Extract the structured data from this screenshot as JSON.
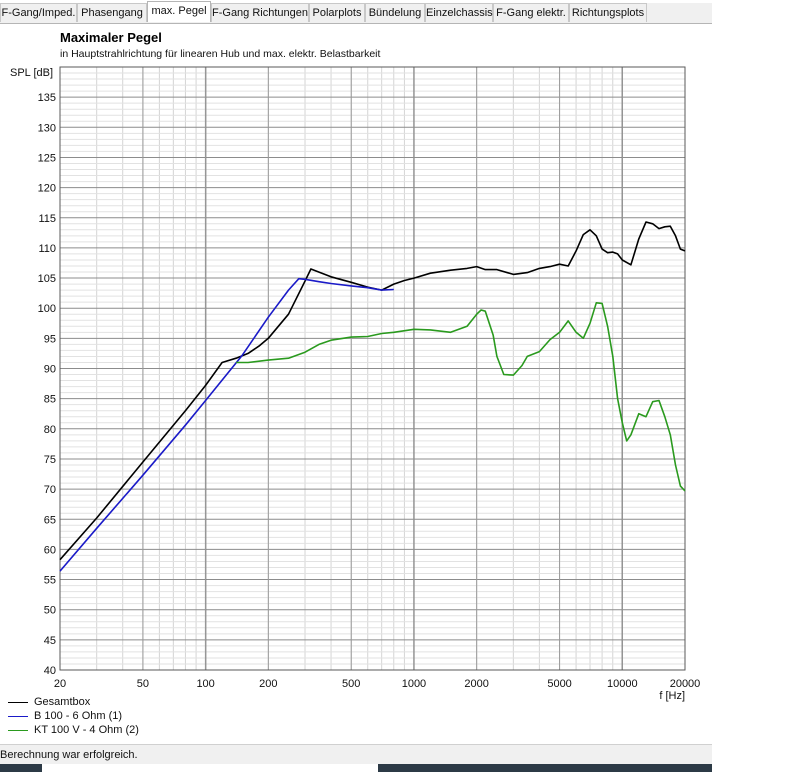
{
  "tabs": [
    {
      "label": "F-Gang/Imped.",
      "active": false
    },
    {
      "label": "Phasengang",
      "active": false
    },
    {
      "label": "max. Pegel",
      "active": true
    },
    {
      "label": "F-Gang Richtungen",
      "active": false
    },
    {
      "label": "Polarplots",
      "active": false
    },
    {
      "label": "Bündelung",
      "active": false
    },
    {
      "label": "Einzelchassis",
      "active": false
    },
    {
      "label": "F-Gang elektr.",
      "active": false
    },
    {
      "label": "Richtungsplots",
      "active": false
    }
  ],
  "status": {
    "text": "Berechnung war erfolgreich."
  },
  "chart_data": {
    "type": "line",
    "title": "Maximaler Pegel",
    "subtitle": "in Hauptstrahlrichtung für linearen Hub und max. elektr. Belastbarkeit",
    "ylabel": "SPL [dB]",
    "xlabel": "f [Hz]",
    "x_scale": "log",
    "xlim": [
      20,
      20000
    ],
    "ylim": [
      40,
      140
    ],
    "x_ticks": [
      20,
      50,
      100,
      200,
      500,
      1000,
      2000,
      5000,
      10000,
      20000
    ],
    "x_tick_labels": [
      "20",
      "50",
      "100",
      "200",
      "500",
      "1000",
      "2000",
      "5000",
      "10000",
      "20000"
    ],
    "y_ticks": [
      40,
      45,
      50,
      55,
      60,
      65,
      70,
      75,
      80,
      85,
      90,
      95,
      100,
      105,
      110,
      115,
      120,
      125,
      130,
      135
    ],
    "grid": true,
    "legend_position": "bottom-left",
    "series": [
      {
        "name": "Gesamtbox",
        "color": "#000000",
        "x": [
          20,
          30,
          50,
          80,
          100,
          120,
          140,
          160,
          180,
          200,
          250,
          300,
          320,
          400,
          500,
          600,
          700,
          800,
          900,
          1000,
          1200,
          1500,
          1800,
          2000,
          2200,
          2500,
          3000,
          3500,
          4000,
          4500,
          5000,
          5500,
          6000,
          6500,
          7000,
          7500,
          8000,
          8500,
          9000,
          9500,
          10000,
          11000,
          12000,
          13000,
          14000,
          15000,
          16000,
          17000,
          18000,
          19000,
          20000
        ],
        "y": [
          58.3,
          65.2,
          74.5,
          83.0,
          87.2,
          91.0,
          91.7,
          92.5,
          93.7,
          95.0,
          99.0,
          104.5,
          106.5,
          105.2,
          104.3,
          103.5,
          103.0,
          104.0,
          104.6,
          105.0,
          105.8,
          106.3,
          106.6,
          106.9,
          106.4,
          106.4,
          105.6,
          105.9,
          106.6,
          106.9,
          107.3,
          107.0,
          109.5,
          112.2,
          113.0,
          112.0,
          109.8,
          109.2,
          109.3,
          109.0,
          108.0,
          107.2,
          111.5,
          114.3,
          114.0,
          113.2,
          113.5,
          113.6,
          112.0,
          109.8,
          109.5
        ]
      },
      {
        "name": "B 100 - 6 Ohm (1)",
        "color": "#1a1ac8",
        "x": [
          20,
          30,
          50,
          80,
          100,
          150,
          200,
          250,
          280,
          300,
          350,
          400,
          500,
          600,
          700,
          800
        ],
        "y": [
          56.4,
          63.5,
          72.3,
          80.6,
          84.7,
          92.2,
          98.5,
          103.0,
          104.9,
          104.8,
          104.4,
          104.1,
          103.7,
          103.4,
          103.0,
          103.1
        ]
      },
      {
        "name": "KT 100 V - 4 Ohm (2)",
        "color": "#2a9a1e",
        "x": [
          140,
          160,
          200,
          250,
          300,
          350,
          400,
          500,
          600,
          700,
          800,
          1000,
          1200,
          1500,
          1800,
          2000,
          2100,
          2200,
          2400,
          2500,
          2700,
          3000,
          3300,
          3500,
          4000,
          4500,
          5000,
          5500,
          6000,
          6500,
          7000,
          7500,
          8000,
          8500,
          9000,
          9500,
          10000,
          10500,
          11000,
          12000,
          13000,
          14000,
          15000,
          16000,
          17000,
          18000,
          19000,
          20000
        ],
        "y": [
          91.0,
          91.0,
          91.4,
          91.7,
          92.7,
          94.0,
          94.7,
          95.2,
          95.3,
          95.8,
          96.0,
          96.5,
          96.4,
          96.0,
          97.0,
          99.0,
          99.7,
          99.5,
          95.5,
          92.0,
          89.0,
          88.9,
          90.5,
          92.0,
          92.8,
          94.8,
          96.0,
          97.9,
          96.0,
          95.0,
          97.5,
          100.9,
          100.8,
          97.0,
          92.0,
          85.0,
          81.0,
          78.0,
          79.0,
          82.5,
          82.0,
          84.5,
          84.7,
          82.0,
          79.0,
          74.0,
          70.5,
          69.7
        ]
      }
    ]
  }
}
